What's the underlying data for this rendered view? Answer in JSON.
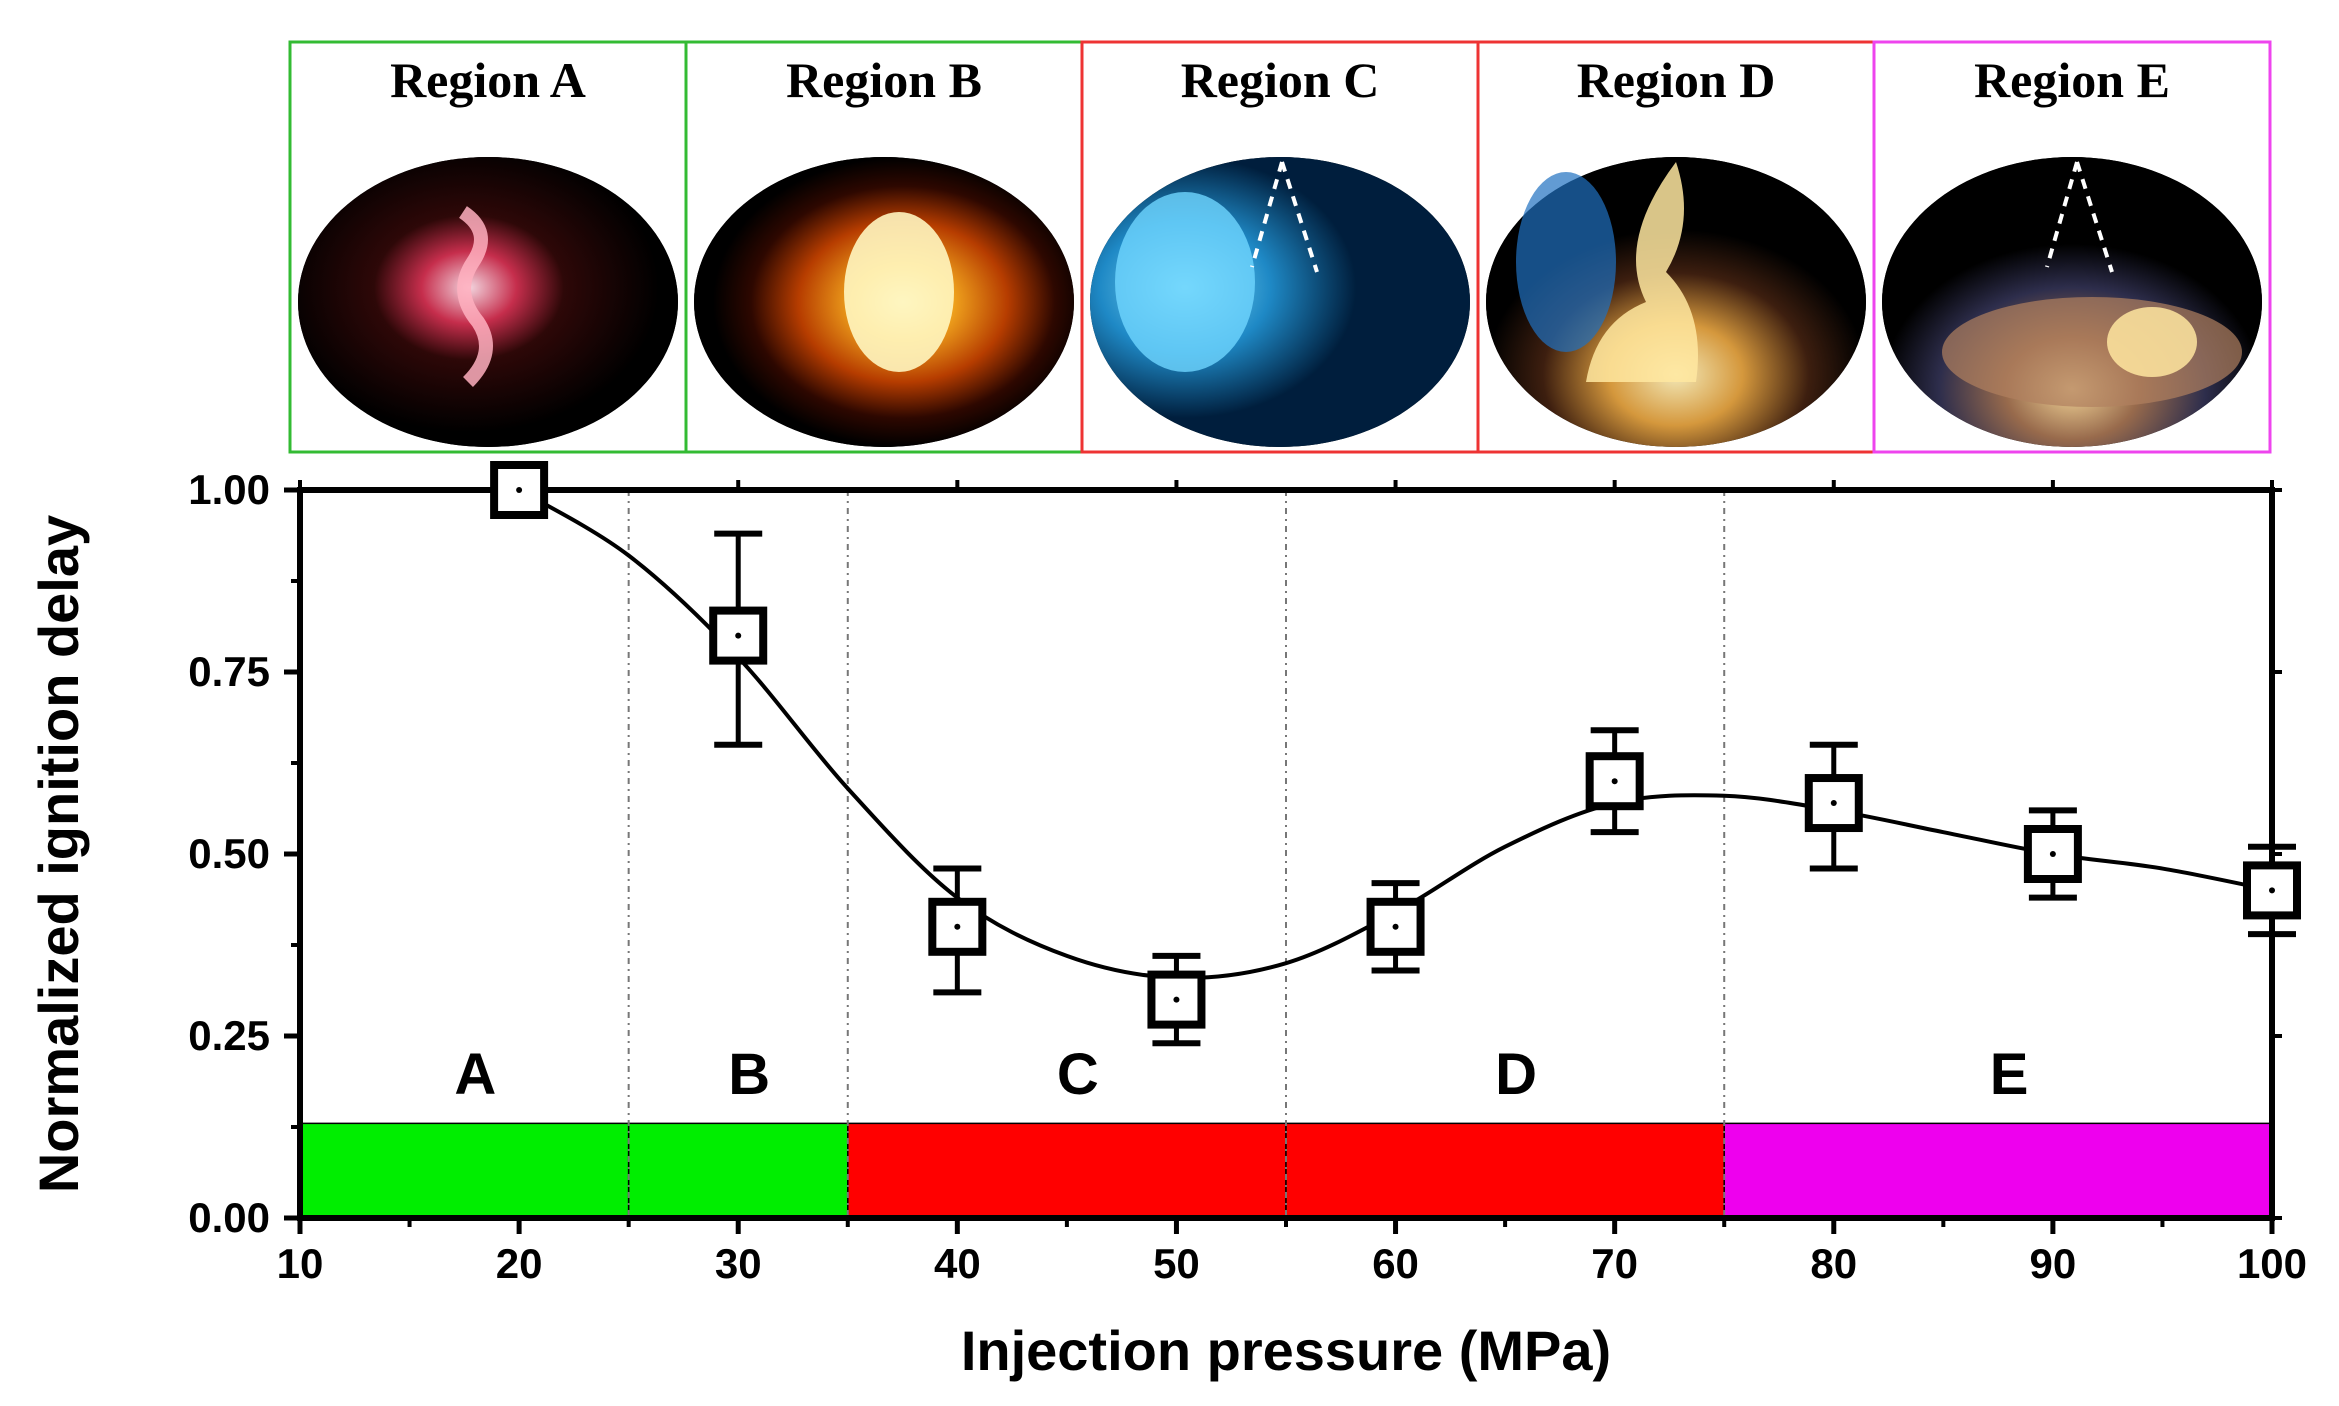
{
  "colors": {
    "region_ab": "#00ee00",
    "region_cd": "#ff0000",
    "region_e": "#ee00ee",
    "panel_border_a": "#33bb33",
    "panel_border_b": "#33bb33",
    "panel_border_c": "#ee3333",
    "panel_border_d": "#ee3333",
    "panel_border_e": "#ee44ee"
  },
  "panels": [
    {
      "title": "Region A",
      "image": "sparse-red-spark-flame"
    },
    {
      "title": "Region B",
      "image": "bright-orange-flame"
    },
    {
      "title": "Region C",
      "image": "blue-flame-with-spray-cone"
    },
    {
      "title": "Region D",
      "image": "blue-and-yellow-flame"
    },
    {
      "title": "Region E",
      "image": "spray-cone-with-sooty-flame"
    }
  ],
  "chart_data": {
    "type": "scatter",
    "title": "",
    "xlabel": "Injection pressure (MPa)",
    "ylabel": "Normalized ignition delay",
    "xlim": [
      10,
      100
    ],
    "ylim": [
      0,
      1
    ],
    "x_ticks": [
      10,
      20,
      30,
      40,
      50,
      60,
      70,
      80,
      90,
      100
    ],
    "x_tick_labels": [
      "10",
      "20",
      "30",
      "40",
      "50",
      "60",
      "70",
      "80",
      "90",
      "100"
    ],
    "y_ticks": [
      0,
      0.25,
      0.5,
      0.75,
      1
    ],
    "y_tick_labels": [
      "0.00",
      "0.25",
      "0.50",
      "0.75",
      "1.00"
    ],
    "grid": false,
    "series": [
      {
        "marker": "open-square",
        "x": [
          20,
          30,
          40,
          50,
          60,
          70,
          80,
          90,
          100
        ],
        "y": [
          1.0,
          0.8,
          0.4,
          0.3,
          0.4,
          0.6,
          0.57,
          0.5,
          0.45
        ],
        "error_low": [
          0.0,
          0.15,
          0.09,
          0.06,
          0.06,
          0.07,
          0.09,
          0.06,
          0.06
        ],
        "error_high": [
          0.0,
          0.14,
          0.08,
          0.06,
          0.06,
          0.07,
          0.08,
          0.06,
          0.06
        ]
      }
    ],
    "fit_curve": {
      "x": [
        20,
        25,
        30,
        35,
        40,
        45,
        50,
        55,
        60,
        65,
        70,
        75,
        80,
        85,
        90,
        95,
        100
      ],
      "y": [
        1.0,
        0.91,
        0.77,
        0.59,
        0.44,
        0.36,
        0.33,
        0.35,
        0.42,
        0.51,
        0.57,
        0.58,
        0.56,
        0.53,
        0.5,
        0.48,
        0.45
      ]
    },
    "regions": [
      {
        "label": "A",
        "x_start": 10,
        "x_end": 25,
        "color": "#00ee00"
      },
      {
        "label": "B",
        "x_start": 25,
        "x_end": 35,
        "color": "#00ee00"
      },
      {
        "label": "C",
        "x_start": 35,
        "x_end": 55,
        "color": "#ff0000"
      },
      {
        "label": "D",
        "x_start": 55,
        "x_end": 75,
        "color": "#ff0000"
      },
      {
        "label": "E",
        "x_start": 75,
        "x_end": 100,
        "color": "#ee00ee"
      }
    ],
    "region_band_y": [
      0,
      0.13
    ]
  }
}
